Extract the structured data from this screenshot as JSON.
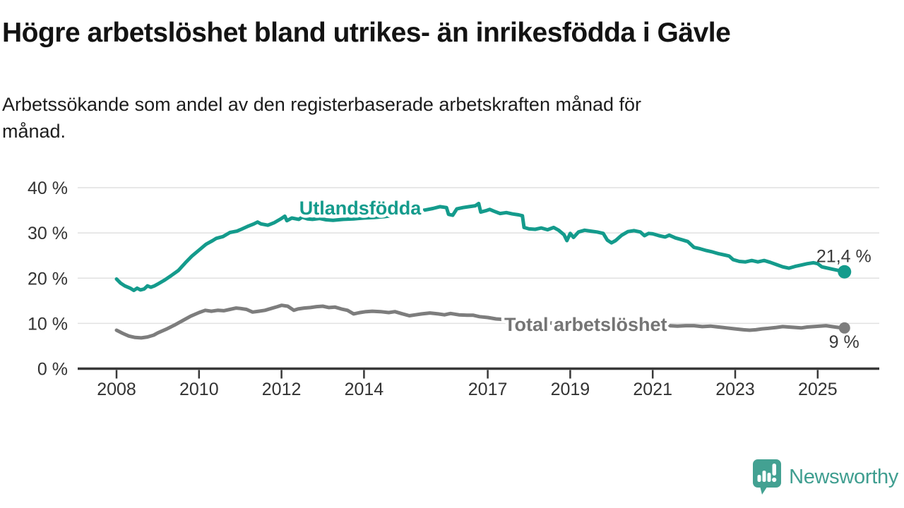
{
  "header": {
    "title": "Högre arbetslöshet bland utrikes- än inrikesfödda i Gävle",
    "subtitle": "Arbetssökande som andel av den registerbaserade arbetskraften månad för\nmånad."
  },
  "footer": {
    "brand": "Newsworthy"
  },
  "colors": {
    "teal_line": "#149b8c",
    "gray_line": "#7d7d7d",
    "gray_label": "#757575",
    "value_label": "#3a3a3a",
    "brand_teal": "#3f9e90",
    "gridline": "#e1e1e1",
    "axis": "#383838"
  },
  "chart_data": {
    "type": "line",
    "title": "Högre arbetslöshet bland utrikes- än inrikesfödda i Gävle",
    "subtitle": "Arbetssökande som andel av den registerbaserade arbetskraften månad för månad.",
    "xlabel": "",
    "ylabel": "",
    "grid": "horizontal-only",
    "legend_position": "inline-on-lines",
    "ylim": [
      0,
      40
    ],
    "xlim": [
      2007.06,
      2026.5
    ],
    "y_ticks": [
      {
        "value": 0,
        "label": "0 %"
      },
      {
        "value": 10,
        "label": "10 %"
      },
      {
        "value": 20,
        "label": "20 %"
      },
      {
        "value": 30,
        "label": "30 %"
      },
      {
        "value": 40,
        "label": "40 %"
      }
    ],
    "x_ticks": [
      {
        "value": 2008,
        "label": "2008"
      },
      {
        "value": 2010,
        "label": "2010"
      },
      {
        "value": 2012,
        "label": "2012"
      },
      {
        "value": 2014,
        "label": "2014"
      },
      {
        "value": 2017,
        "label": "2017"
      },
      {
        "value": 2019,
        "label": "2019"
      },
      {
        "value": 2021,
        "label": "2021"
      },
      {
        "value": 2023,
        "label": "2023"
      },
      {
        "value": 2025,
        "label": "2025"
      }
    ],
    "series": [
      {
        "name": "Utlandsfödda",
        "color": "#149b8c",
        "end_label": "21,4 %",
        "end_value": 21.4,
        "points": [
          [
            2008.0,
            19.8
          ],
          [
            2008.1,
            18.9
          ],
          [
            2008.2,
            18.3
          ],
          [
            2008.33,
            17.8
          ],
          [
            2008.42,
            17.3
          ],
          [
            2008.5,
            17.8
          ],
          [
            2008.58,
            17.4
          ],
          [
            2008.67,
            17.6
          ],
          [
            2008.75,
            18.3
          ],
          [
            2008.83,
            18.0
          ],
          [
            2008.92,
            18.3
          ],
          [
            2009.0,
            18.7
          ],
          [
            2009.17,
            19.6
          ],
          [
            2009.33,
            20.6
          ],
          [
            2009.5,
            21.7
          ],
          [
            2009.67,
            23.4
          ],
          [
            2009.83,
            24.9
          ],
          [
            2010.0,
            26.2
          ],
          [
            2010.17,
            27.5
          ],
          [
            2010.33,
            28.3
          ],
          [
            2010.42,
            28.8
          ],
          [
            2010.58,
            29.2
          ],
          [
            2010.75,
            30.1
          ],
          [
            2010.92,
            30.4
          ],
          [
            2011.0,
            30.7
          ],
          [
            2011.17,
            31.4
          ],
          [
            2011.33,
            32.0
          ],
          [
            2011.42,
            32.4
          ],
          [
            2011.5,
            32.0
          ],
          [
            2011.67,
            31.7
          ],
          [
            2011.83,
            32.3
          ],
          [
            2012.0,
            33.2
          ],
          [
            2012.08,
            33.7
          ],
          [
            2012.13,
            32.7
          ],
          [
            2012.25,
            33.3
          ],
          [
            2012.42,
            33.0
          ],
          [
            2012.5,
            33.5
          ],
          [
            2012.63,
            33.1
          ],
          [
            2012.75,
            33.0
          ],
          [
            2012.92,
            33.2
          ],
          [
            2013.08,
            32.9
          ],
          [
            2013.25,
            32.8
          ],
          [
            2013.5,
            33.0
          ],
          [
            2013.75,
            33.1
          ],
          [
            2014.0,
            33.3
          ],
          [
            2014.25,
            33.4
          ],
          [
            2014.5,
            33.6
          ],
          [
            2014.75,
            33.9
          ],
          [
            2015.0,
            34.3
          ],
          [
            2015.25,
            34.7
          ],
          [
            2015.5,
            35.1
          ],
          [
            2015.67,
            35.4
          ],
          [
            2015.84,
            35.8
          ],
          [
            2016.0,
            35.6
          ],
          [
            2016.05,
            34.1
          ],
          [
            2016.15,
            33.9
          ],
          [
            2016.25,
            35.3
          ],
          [
            2016.4,
            35.6
          ],
          [
            2016.55,
            35.8
          ],
          [
            2016.7,
            36.0
          ],
          [
            2016.78,
            36.5
          ],
          [
            2016.83,
            34.6
          ],
          [
            2016.95,
            34.9
          ],
          [
            2017.05,
            35.2
          ],
          [
            2017.15,
            34.8
          ],
          [
            2017.3,
            34.3
          ],
          [
            2017.45,
            34.5
          ],
          [
            2017.6,
            34.2
          ],
          [
            2017.75,
            34.0
          ],
          [
            2017.84,
            33.8
          ],
          [
            2017.88,
            31.2
          ],
          [
            2018.0,
            30.9
          ],
          [
            2018.15,
            30.8
          ],
          [
            2018.3,
            31.1
          ],
          [
            2018.45,
            30.7
          ],
          [
            2018.6,
            31.2
          ],
          [
            2018.72,
            30.6
          ],
          [
            2018.85,
            29.6
          ],
          [
            2018.92,
            28.3
          ],
          [
            2019.0,
            29.9
          ],
          [
            2019.08,
            29.0
          ],
          [
            2019.2,
            30.2
          ],
          [
            2019.35,
            30.6
          ],
          [
            2019.5,
            30.4
          ],
          [
            2019.65,
            30.2
          ],
          [
            2019.8,
            29.9
          ],
          [
            2019.9,
            28.4
          ],
          [
            2020.0,
            27.8
          ],
          [
            2020.1,
            28.3
          ],
          [
            2020.25,
            29.5
          ],
          [
            2020.4,
            30.3
          ],
          [
            2020.55,
            30.5
          ],
          [
            2020.7,
            30.2
          ],
          [
            2020.8,
            29.4
          ],
          [
            2020.9,
            29.9
          ],
          [
            2021.0,
            29.8
          ],
          [
            2021.15,
            29.4
          ],
          [
            2021.3,
            29.1
          ],
          [
            2021.4,
            29.5
          ],
          [
            2021.55,
            28.9
          ],
          [
            2021.7,
            28.5
          ],
          [
            2021.85,
            28.1
          ],
          [
            2022.0,
            26.8
          ],
          [
            2022.15,
            26.5
          ],
          [
            2022.3,
            26.1
          ],
          [
            2022.45,
            25.8
          ],
          [
            2022.6,
            25.4
          ],
          [
            2022.75,
            25.1
          ],
          [
            2022.85,
            24.9
          ],
          [
            2022.95,
            24.1
          ],
          [
            2023.1,
            23.7
          ],
          [
            2023.25,
            23.6
          ],
          [
            2023.4,
            23.9
          ],
          [
            2023.55,
            23.6
          ],
          [
            2023.7,
            23.9
          ],
          [
            2023.85,
            23.5
          ],
          [
            2024.0,
            23.0
          ],
          [
            2024.15,
            22.5
          ],
          [
            2024.3,
            22.2
          ],
          [
            2024.45,
            22.6
          ],
          [
            2024.6,
            22.9
          ],
          [
            2024.75,
            23.2
          ],
          [
            2024.9,
            23.4
          ],
          [
            2025.0,
            23.2
          ],
          [
            2025.1,
            22.5
          ],
          [
            2025.2,
            22.3
          ],
          [
            2025.35,
            22.0
          ],
          [
            2025.5,
            21.7
          ],
          [
            2025.65,
            21.4
          ]
        ]
      },
      {
        "name": "Total arbetslöshet",
        "color": "#7d7d7d",
        "end_label": "9 %",
        "end_value": 9.0,
        "points": [
          [
            2008.0,
            8.5
          ],
          [
            2008.15,
            7.8
          ],
          [
            2008.3,
            7.2
          ],
          [
            2008.45,
            6.9
          ],
          [
            2008.6,
            6.8
          ],
          [
            2008.75,
            7.0
          ],
          [
            2008.9,
            7.4
          ],
          [
            2009.0,
            7.9
          ],
          [
            2009.2,
            8.7
          ],
          [
            2009.4,
            9.6
          ],
          [
            2009.6,
            10.6
          ],
          [
            2009.8,
            11.6
          ],
          [
            2010.0,
            12.4
          ],
          [
            2010.15,
            12.9
          ],
          [
            2010.3,
            12.7
          ],
          [
            2010.45,
            12.9
          ],
          [
            2010.6,
            12.8
          ],
          [
            2010.75,
            13.1
          ],
          [
            2010.9,
            13.4
          ],
          [
            2011.0,
            13.3
          ],
          [
            2011.15,
            13.1
          ],
          [
            2011.3,
            12.5
          ],
          [
            2011.45,
            12.7
          ],
          [
            2011.6,
            12.9
          ],
          [
            2011.75,
            13.3
          ],
          [
            2011.9,
            13.7
          ],
          [
            2012.0,
            14.0
          ],
          [
            2012.15,
            13.8
          ],
          [
            2012.3,
            12.9
          ],
          [
            2012.4,
            13.2
          ],
          [
            2012.55,
            13.4
          ],
          [
            2012.7,
            13.5
          ],
          [
            2012.85,
            13.7
          ],
          [
            2013.0,
            13.8
          ],
          [
            2013.15,
            13.5
          ],
          [
            2013.3,
            13.6
          ],
          [
            2013.45,
            13.2
          ],
          [
            2013.6,
            12.9
          ],
          [
            2013.75,
            12.1
          ],
          [
            2013.9,
            12.4
          ],
          [
            2014.05,
            12.6
          ],
          [
            2014.2,
            12.7
          ],
          [
            2014.4,
            12.6
          ],
          [
            2014.6,
            12.4
          ],
          [
            2014.75,
            12.6
          ],
          [
            2014.9,
            12.2
          ],
          [
            2015.1,
            11.7
          ],
          [
            2015.25,
            11.9
          ],
          [
            2015.4,
            12.1
          ],
          [
            2015.6,
            12.3
          ],
          [
            2015.8,
            12.1
          ],
          [
            2015.95,
            11.9
          ],
          [
            2016.1,
            12.2
          ],
          [
            2016.3,
            11.9
          ],
          [
            2016.5,
            11.8
          ],
          [
            2016.65,
            11.8
          ],
          [
            2016.8,
            11.5
          ],
          [
            2017.0,
            11.3
          ],
          [
            2017.2,
            11.0
          ],
          [
            2017.5,
            10.8
          ],
          [
            2018.0,
            10.4
          ],
          [
            2018.5,
            10.1
          ],
          [
            2019.0,
            9.9
          ],
          [
            2019.5,
            9.8
          ],
          [
            2020.0,
            10.1
          ],
          [
            2020.5,
            10.0
          ],
          [
            2021.0,
            9.7
          ],
          [
            2021.2,
            9.6
          ],
          [
            2021.4,
            9.5
          ],
          [
            2021.6,
            9.4
          ],
          [
            2021.8,
            9.5
          ],
          [
            2022.0,
            9.5
          ],
          [
            2022.2,
            9.3
          ],
          [
            2022.4,
            9.4
          ],
          [
            2022.6,
            9.2
          ],
          [
            2022.8,
            9.0
          ],
          [
            2023.0,
            8.8
          ],
          [
            2023.2,
            8.6
          ],
          [
            2023.35,
            8.5
          ],
          [
            2023.5,
            8.6
          ],
          [
            2023.65,
            8.8
          ],
          [
            2023.8,
            8.9
          ],
          [
            2024.0,
            9.1
          ],
          [
            2024.15,
            9.3
          ],
          [
            2024.3,
            9.2
          ],
          [
            2024.45,
            9.1
          ],
          [
            2024.6,
            9.0
          ],
          [
            2024.75,
            9.2
          ],
          [
            2024.9,
            9.3
          ],
          [
            2025.05,
            9.4
          ],
          [
            2025.2,
            9.5
          ],
          [
            2025.35,
            9.3
          ],
          [
            2025.5,
            9.1
          ],
          [
            2025.65,
            9.0
          ]
        ]
      }
    ]
  }
}
